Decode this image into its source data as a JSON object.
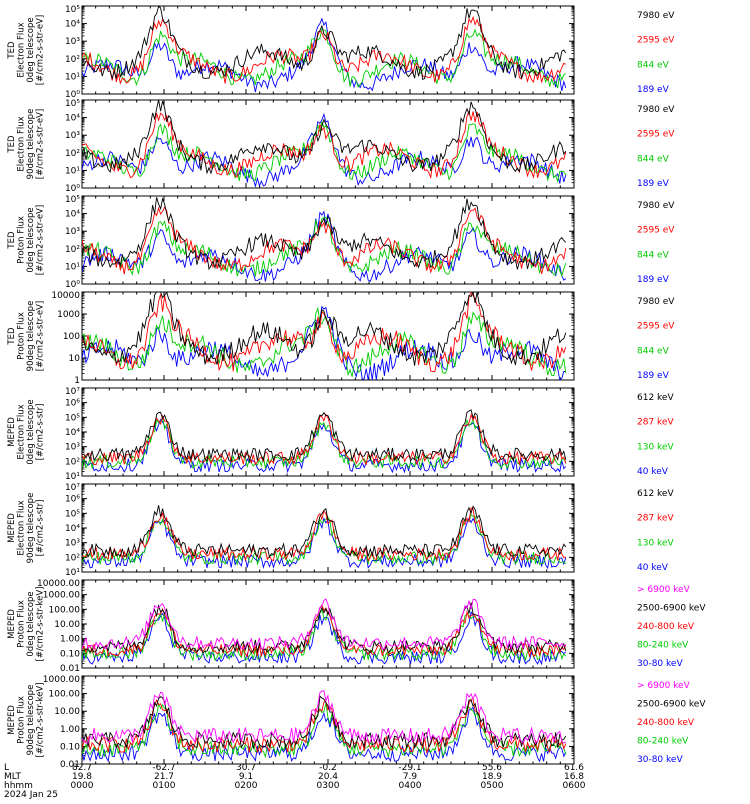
{
  "chart_data": {
    "type": "line",
    "x_axis": {
      "rows": [
        {
          "label": "L",
          "values": [
            "82.7",
            "-62.7",
            "30.7",
            "-0.2",
            "-29.1",
            "55.6",
            "61.6"
          ]
        },
        {
          "label": "MLT",
          "values": [
            "19.8",
            "21.7",
            "9.1",
            "20.4",
            "7.9",
            "18.9",
            "16.8"
          ]
        },
        {
          "label": "hhmm",
          "values": [
            "0000",
            "0100",
            "0200",
            "0300",
            "0400",
            "0500",
            "0600"
          ]
        }
      ],
      "date": "2024 Jan 25",
      "range_hours": [
        0,
        6
      ]
    },
    "panels": [
      {
        "ylabel": [
          "TED",
          "Electron Flux",
          "0deg telescope",
          "[#/cm2-s-str-eV]"
        ],
        "scale": "log",
        "ylim_exp": [
          0,
          5
        ],
        "tick_labels": [
          "10⁰",
          "10¹",
          "10²",
          "10³",
          "10⁴",
          "10⁵"
        ],
        "legend": [
          {
            "name": "7980 eV",
            "color": "#000000"
          },
          {
            "name": "2595 eV",
            "color": "#ff0000"
          },
          {
            "name": "844 eV",
            "color": "#00cc00"
          },
          {
            "name": "189 eV",
            "color": "#0000ff"
          }
        ]
      },
      {
        "ylabel": [
          "TED",
          "Electron Flux",
          "90deg telescope",
          "[#/cm2-s-str-eV]"
        ],
        "scale": "log",
        "ylim_exp": [
          0,
          5
        ],
        "tick_labels": [
          "10⁰",
          "10¹",
          "10²",
          "10³",
          "10⁴",
          "10⁵"
        ],
        "legend": [
          {
            "name": "7980 eV",
            "color": "#000000"
          },
          {
            "name": "2595 eV",
            "color": "#ff0000"
          },
          {
            "name": "844 eV",
            "color": "#00cc00"
          },
          {
            "name": "189 eV",
            "color": "#0000ff"
          }
        ]
      },
      {
        "ylabel": [
          "TED",
          "Proton Flux",
          "0deg telescope",
          "[#/cm2-s-str-eV]"
        ],
        "scale": "log",
        "ylim_exp": [
          0,
          5
        ],
        "tick_labels": [
          "10⁰",
          "10¹",
          "10²",
          "10³",
          "10⁴",
          "10⁵"
        ],
        "legend": [
          {
            "name": "7980 eV",
            "color": "#000000"
          },
          {
            "name": "2595 eV",
            "color": "#ff0000"
          },
          {
            "name": "844 eV",
            "color": "#00cc00"
          },
          {
            "name": "189 eV",
            "color": "#0000ff"
          }
        ]
      },
      {
        "ylabel": [
          "TED",
          "Proton Flux",
          "90deg telescope",
          "[#/cm2-s-str-eV]"
        ],
        "scale": "log",
        "ylim_exp": [
          0,
          4
        ],
        "tick_labels": [
          "1",
          "10",
          "100",
          "1000",
          "10000"
        ],
        "legend": [
          {
            "name": "7980 eV",
            "color": "#000000"
          },
          {
            "name": "2595 eV",
            "color": "#ff0000"
          },
          {
            "name": "844 eV",
            "color": "#00cc00"
          },
          {
            "name": "189 eV",
            "color": "#0000ff"
          }
        ]
      },
      {
        "ylabel": [
          "MEPED",
          "Electron Flux",
          "0deg telescope",
          "[#/cm2-s-str]"
        ],
        "scale": "log",
        "ylim_exp": [
          1,
          7
        ],
        "tick_labels": [
          "10¹",
          "10²",
          "10³",
          "10⁴",
          "10⁵",
          "10⁶",
          "10⁷"
        ],
        "legend": [
          {
            "name": "612 keV",
            "color": "#000000"
          },
          {
            "name": "287 keV",
            "color": "#ff0000"
          },
          {
            "name": "130 keV",
            "color": "#00cc00"
          },
          {
            "name": "40 keV",
            "color": "#0000ff"
          }
        ]
      },
      {
        "ylabel": [
          "MEPED",
          "Electron Flux",
          "90deg telescope",
          "[#/cm2-s-str]"
        ],
        "scale": "log",
        "ylim_exp": [
          1,
          7
        ],
        "tick_labels": [
          "10¹",
          "10²",
          "10³",
          "10⁴",
          "10⁵",
          "10⁶",
          "10⁷"
        ],
        "legend": [
          {
            "name": "612 keV",
            "color": "#000000"
          },
          {
            "name": "287 keV",
            "color": "#ff0000"
          },
          {
            "name": "130 keV",
            "color": "#00cc00"
          },
          {
            "name": "40 keV",
            "color": "#0000ff"
          }
        ]
      },
      {
        "ylabel": [
          "MEPED",
          "Proton Flux",
          "0deg telescope",
          "[#/cm2-s-str-keV]"
        ],
        "scale": "log",
        "ylim_exp": [
          -2,
          4
        ],
        "tick_labels": [
          "0.01",
          "0.10",
          "1.00",
          "10.00",
          "100.00",
          "1000.00",
          "10000.00"
        ],
        "legend": [
          {
            "name": "> 6900 keV",
            "color": "#ff00ff"
          },
          {
            "name": "2500-6900 keV",
            "color": "#000000"
          },
          {
            "name": "240-800 keV",
            "color": "#ff0000"
          },
          {
            "name": "80-240 keV",
            "color": "#00cc00"
          },
          {
            "name": "30-80 keV",
            "color": "#0000ff"
          }
        ]
      },
      {
        "ylabel": [
          "MEPED",
          "Proton Flux",
          "90deg telescope",
          "[#/cm2-s-str-keV]"
        ],
        "scale": "log",
        "ylim_exp": [
          -2,
          3
        ],
        "tick_labels": [
          "0.01",
          "0.10",
          "1.00",
          "10.00",
          "100.00",
          "1000.00"
        ],
        "legend": [
          {
            "name": "> 6900 keV",
            "color": "#ff00ff"
          },
          {
            "name": "2500-6900 keV",
            "color": "#000000"
          },
          {
            "name": "240-800 keV",
            "color": "#ff0000"
          },
          {
            "name": "80-240 keV",
            "color": "#00cc00"
          },
          {
            "name": "30-80 keV",
            "color": "#0000ff"
          }
        ]
      }
    ]
  }
}
